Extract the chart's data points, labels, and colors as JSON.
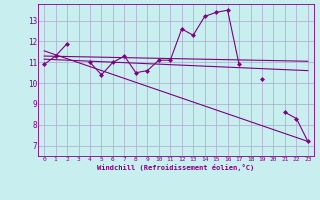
{
  "xlabel": "Windchill (Refroidissement éolien,°C)",
  "background_color": "#c8eef0",
  "grid_color": "#aaaacc",
  "line_color": "#800080",
  "x_hours": [
    0,
    1,
    2,
    3,
    4,
    5,
    6,
    7,
    8,
    9,
    10,
    11,
    12,
    13,
    14,
    15,
    16,
    17,
    18,
    19,
    20,
    21,
    22,
    23
  ],
  "series1": [
    10.9,
    11.3,
    11.9,
    null,
    11.0,
    10.4,
    11.0,
    11.3,
    10.5,
    10.6,
    11.1,
    11.1,
    12.6,
    12.3,
    13.2,
    13.4,
    13.5,
    10.9,
    null,
    10.2,
    null,
    8.6,
    8.3,
    7.2
  ],
  "trend1_x": [
    0,
    23
  ],
  "trend1_y": [
    11.3,
    11.05
  ],
  "trend2_x": [
    0,
    23
  ],
  "trend2_y": [
    11.15,
    10.6
  ],
  "trend3_x": [
    0,
    23
  ],
  "trend3_y": [
    11.55,
    7.2
  ],
  "ylim": [
    6.5,
    13.8
  ],
  "xlim": [
    -0.5,
    23.5
  ],
  "yticks": [
    7,
    8,
    9,
    10,
    11,
    12,
    13
  ],
  "xticks": [
    0,
    1,
    2,
    3,
    4,
    5,
    6,
    7,
    8,
    9,
    10,
    11,
    12,
    13,
    14,
    15,
    16,
    17,
    18,
    19,
    20,
    21,
    22,
    23
  ]
}
